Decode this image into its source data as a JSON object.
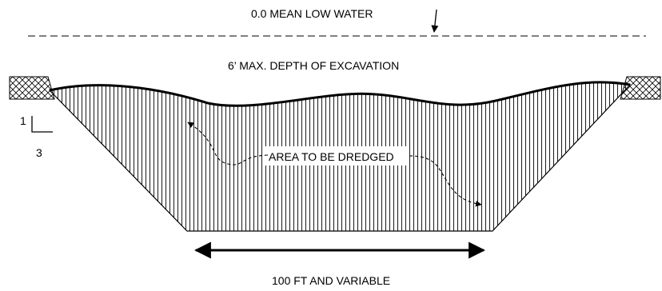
{
  "labels": {
    "mean_low_water": "0.0 MEAN LOW WATER",
    "max_depth": "6’ MAX. DEPTH OF EXCAVATION",
    "area": "AREA TO BE DREDGED",
    "bottom_width": "100 FT AND VARIABLE",
    "slope_rise": "1",
    "slope_run": "3"
  }
}
